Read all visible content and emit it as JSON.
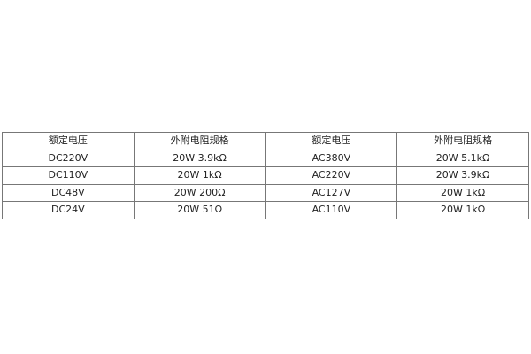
{
  "table": {
    "headers": [
      "额定电压",
      "外附电阻规格",
      "额定电压",
      "外附电阻规格"
    ],
    "rows": [
      [
        "DC220V",
        "20W 3.9kΩ",
        "AC380V",
        "20W 5.1kΩ"
      ],
      [
        "DC110V",
        "20W 1kΩ",
        "AC220V",
        "20W 3.9kΩ"
      ],
      [
        "DC48V",
        "20W 200Ω",
        "AC127V",
        "20W 1kΩ"
      ],
      [
        "DC24V",
        "20W 51Ω",
        "AC110V",
        "20W 1kΩ"
      ]
    ]
  }
}
